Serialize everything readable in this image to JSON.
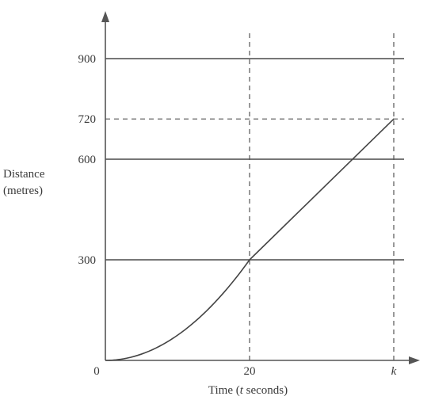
{
  "chart_data": {
    "type": "line",
    "ylabel": [
      "Distance",
      "(metres)"
    ],
    "xlabel_parts": [
      "Time (",
      "t",
      " seconds)"
    ],
    "ylim": [
      0,
      1000
    ],
    "xlim": [
      0,
      52
    ],
    "y_ticks": [
      300,
      600,
      900
    ],
    "y_dashed_ticks": [
      720
    ],
    "x_ticks": [
      {
        "value": 0,
        "label": "0",
        "italic": false
      },
      {
        "value": 20,
        "label": "20",
        "italic": false
      },
      {
        "value": 40,
        "label": "k",
        "italic": true
      }
    ],
    "x_dashed_verticals": [
      20,
      40
    ],
    "grid_horizontal": true,
    "series": [
      {
        "segments": [
          {
            "kind": "quadratic",
            "x": [
              0,
              20
            ],
            "y": [
              0,
              300
            ]
          },
          {
            "kind": "linear",
            "x": [
              20,
              40
            ],
            "y": [
              300,
              720
            ]
          }
        ]
      }
    ]
  }
}
